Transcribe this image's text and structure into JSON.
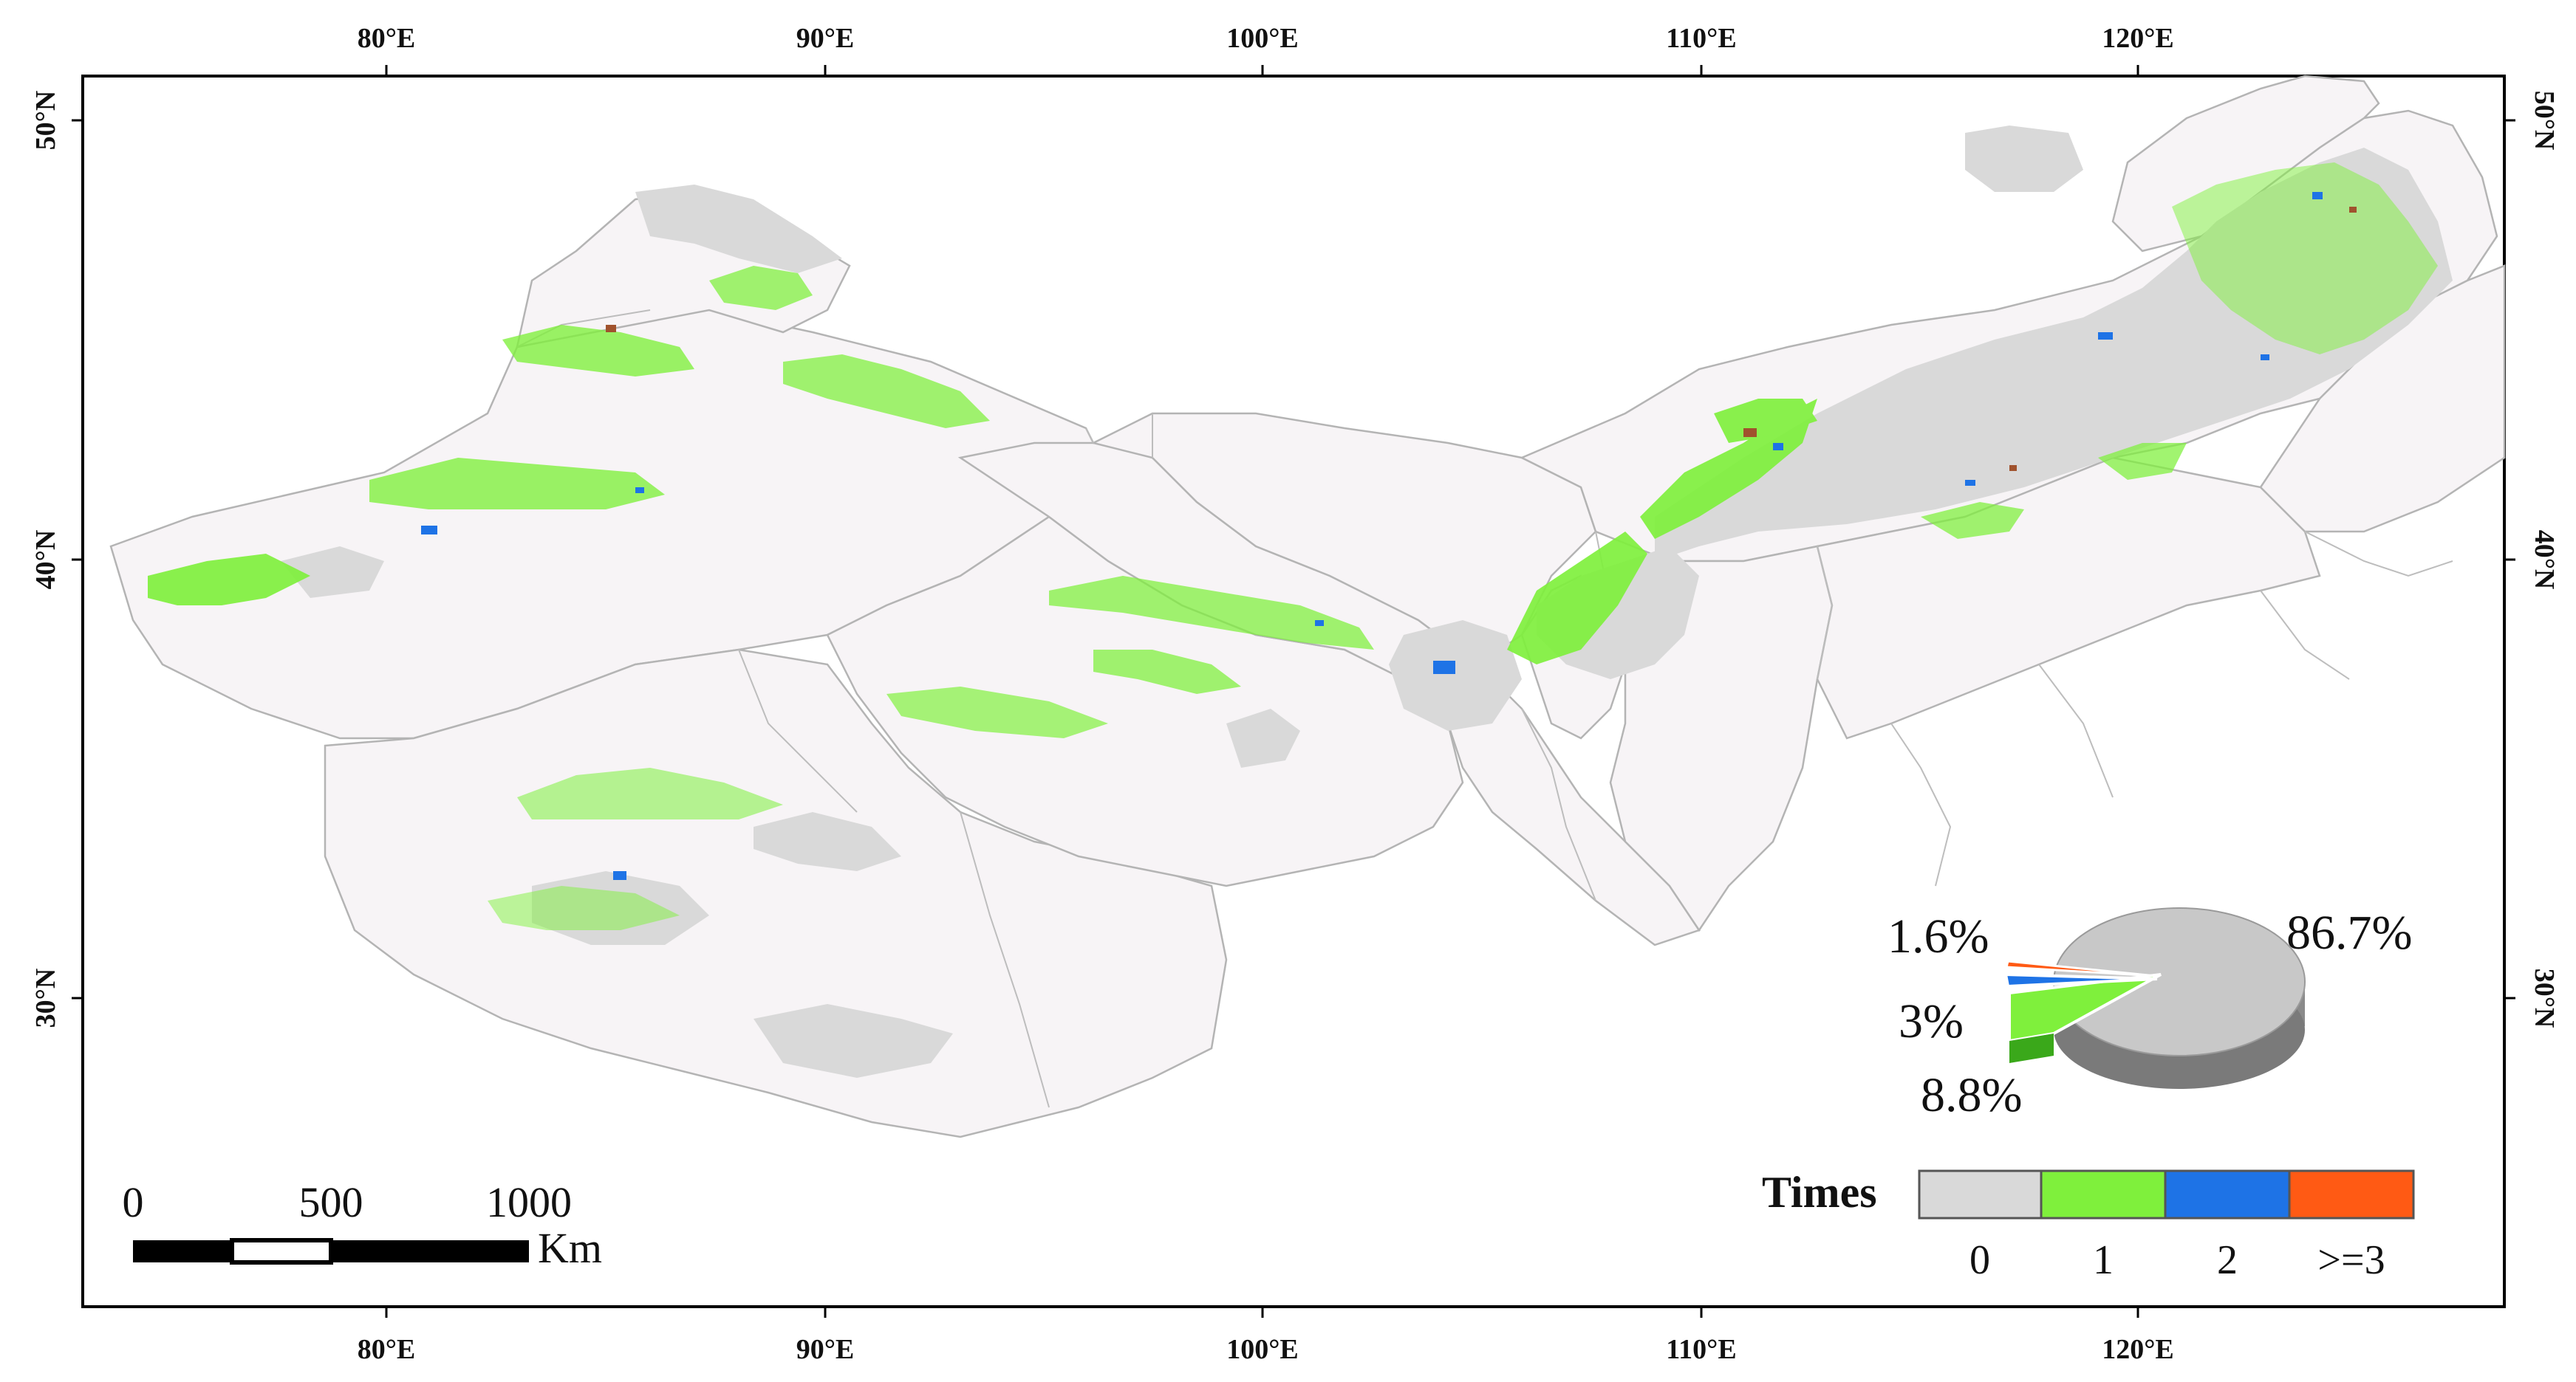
{
  "axes": {
    "top": [
      "80°E",
      "90°E",
      "100°E",
      "110°E",
      "120°E"
    ],
    "bottom": [
      "80°E",
      "90°E",
      "100°E",
      "110°E",
      "120°E"
    ],
    "left": [
      "50°N",
      "40°N",
      "30°N"
    ],
    "right": [
      "50°N",
      "40°N",
      "30°N"
    ]
  },
  "scale_bar": {
    "labels": [
      "0",
      "500",
      "1000"
    ],
    "unit": "Km"
  },
  "legend": {
    "title": "Times",
    "classes": [
      {
        "label": "0",
        "color": "#d9d9d9"
      },
      {
        "label": "1",
        "color": "#7ff03c"
      },
      {
        "label": "2",
        "color": "#1e73e6"
      },
      {
        "label": ">=3",
        "color": "#ff5a14"
      }
    ]
  },
  "pie": {
    "slices": [
      {
        "class": "0",
        "percent": 86.7,
        "label": "86.7%",
        "color": "#c8c8c8"
      },
      {
        "class": "1",
        "percent": 8.8,
        "label": "8.8%",
        "color": "#7ff03c"
      },
      {
        "class": "2",
        "percent": 3,
        "label": "3%",
        "color": "#1e73e6"
      },
      {
        "class": ">=3",
        "percent": 1.6,
        "label": "1.6%",
        "color": "#ff5a14"
      }
    ]
  },
  "colors": {
    "boundary": "#b4b4b4",
    "frame": "#000000",
    "region_fill": "#f7f4f6"
  }
}
